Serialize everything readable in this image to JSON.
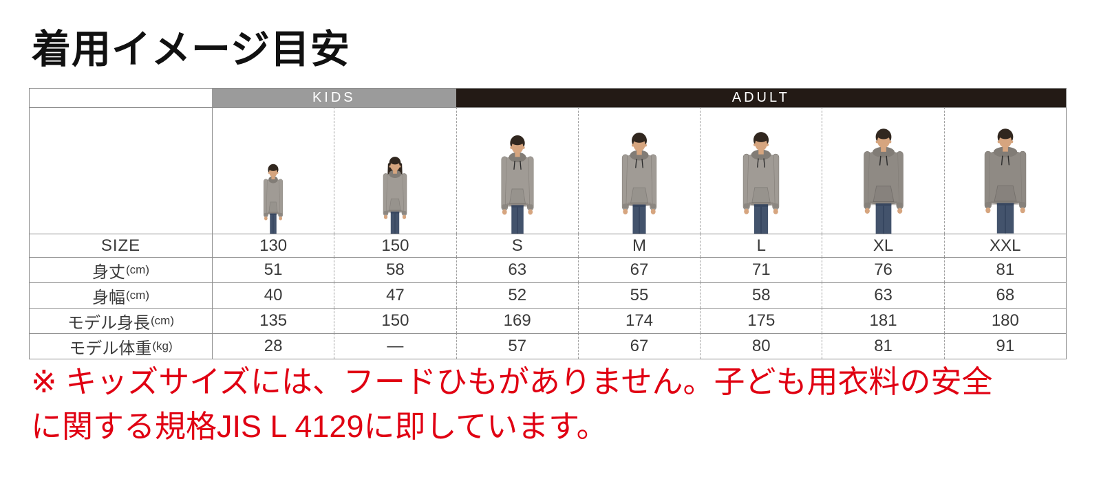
{
  "page": {
    "title": "着用イメージ目安"
  },
  "table": {
    "groups": [
      {
        "label": "KIDS"
      },
      {
        "label": "ADULT"
      }
    ],
    "row_labels": {
      "size": {
        "label": "SIZE",
        "unit": ""
      },
      "length": {
        "label": "身丈",
        "unit": "(cm)"
      },
      "width": {
        "label": "身幅",
        "unit": "(cm)"
      },
      "model_height": {
        "label": "モデル身長",
        "unit": "(cm)"
      },
      "model_weight": {
        "label": "モデル体重",
        "unit": "(kg)"
      }
    },
    "columns": [
      {
        "group": "KIDS",
        "size": "130",
        "length": "51",
        "width": "40",
        "model_height": "135",
        "model_weight": "28",
        "model": {
          "height_cm": 135,
          "width_cm": 40,
          "build": "kid-boy"
        }
      },
      {
        "group": "KIDS",
        "size": "150",
        "length": "58",
        "width": "47",
        "model_height": "150",
        "model_weight": "—",
        "model": {
          "height_cm": 150,
          "width_cm": 47,
          "build": "kid-girl"
        }
      },
      {
        "group": "ADULT",
        "size": "S",
        "length": "63",
        "width": "52",
        "model_height": "169",
        "model_weight": "57",
        "model": {
          "height_cm": 169,
          "width_cm": 52,
          "build": "adult"
        }
      },
      {
        "group": "ADULT",
        "size": "M",
        "length": "67",
        "width": "55",
        "model_height": "174",
        "model_weight": "67",
        "model": {
          "height_cm": 174,
          "width_cm": 55,
          "build": "adult"
        }
      },
      {
        "group": "ADULT",
        "size": "L",
        "length": "71",
        "width": "58",
        "model_height": "175",
        "model_weight": "80",
        "model": {
          "height_cm": 175,
          "width_cm": 58,
          "build": "adult"
        }
      },
      {
        "group": "ADULT",
        "size": "XL",
        "length": "76",
        "width": "63",
        "model_height": "181",
        "model_weight": "81",
        "model": {
          "height_cm": 181,
          "width_cm": 63,
          "build": "adult",
          "hoodie": "#8f8a84"
        }
      },
      {
        "group": "ADULT",
        "size": "XXL",
        "length": "81",
        "width": "68",
        "model_height": "180",
        "model_weight": "91",
        "model": {
          "height_cm": 180,
          "width_cm": 68,
          "build": "adult",
          "hoodie": "#8f8a84"
        }
      }
    ]
  },
  "note": {
    "line1": "※ キッズサイズには、フードひもがありません。子ども用衣料の安全",
    "line2": "に関する規格JIS L 4129に即しています。"
  },
  "colors": {
    "kids_header_bg": "#9b9b9b",
    "adult_header_bg": "#231a15",
    "note_red": "#e00012",
    "grid_line": "#8e8e8e"
  },
  "palette": {
    "hoodie": "#a09b95",
    "hoodie_shade": "#817c76",
    "skin": "#d6a57f",
    "hair": "#31271f",
    "jeans": "#43536c",
    "jeans_shade": "#2f3e57",
    "cord": "#2d2d2d"
  }
}
